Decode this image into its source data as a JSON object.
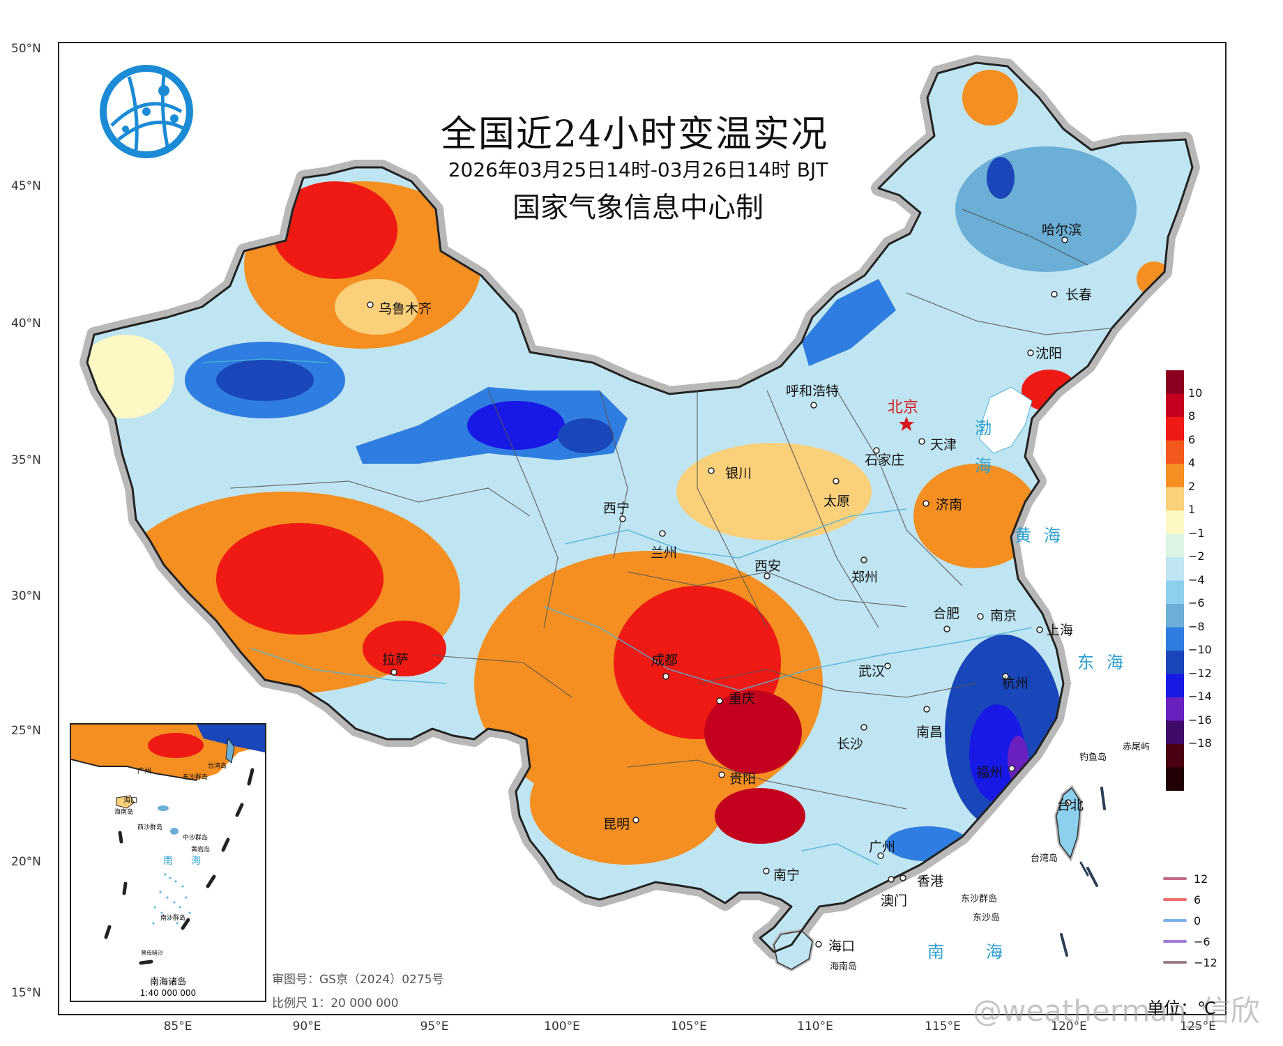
{
  "title": "全国近24小时变温实况",
  "subtitle": "2026年03月25日14时-03月26日14时 BJT",
  "producer": "国家气象信息中心制",
  "latitude_labels": [
    "50°N",
    "45°N",
    "40°N",
    "35°N",
    "30°N",
    "25°N",
    "20°N",
    "15°N"
  ],
  "longitude_labels": [
    "85°E",
    "90°E",
    "95°E",
    "100°E",
    "105°E",
    "110°E",
    "115°E",
    "120°E",
    "125°E"
  ],
  "cities": [
    {
      "name": "乌鲁木齐",
      "id": "urumqi"
    },
    {
      "name": "呼和浩特",
      "id": "hohhot"
    },
    {
      "name": "北京",
      "id": "beijing"
    },
    {
      "name": "天津",
      "id": "tianjin"
    },
    {
      "name": "石家庄",
      "id": "shijiazhuang"
    },
    {
      "name": "银川",
      "id": "yinchuan"
    },
    {
      "name": "太原",
      "id": "taiyuan"
    },
    {
      "name": "济南",
      "id": "jinan"
    },
    {
      "name": "西宁",
      "id": "xining"
    },
    {
      "name": "兰州",
      "id": "lanzhou"
    },
    {
      "name": "西安",
      "id": "xian"
    },
    {
      "name": "郑州",
      "id": "zhengzhou"
    },
    {
      "name": "合肥",
      "id": "hefei"
    },
    {
      "name": "南京",
      "id": "nanjing"
    },
    {
      "name": "上海",
      "id": "shanghai"
    },
    {
      "name": "拉萨",
      "id": "lhasa"
    },
    {
      "name": "成都",
      "id": "chengdu"
    },
    {
      "name": "重庆",
      "id": "chongqing"
    },
    {
      "name": "武汉",
      "id": "wuhan"
    },
    {
      "name": "杭州",
      "id": "hangzhou"
    },
    {
      "name": "长沙",
      "id": "changsha"
    },
    {
      "name": "南昌",
      "id": "nanchang"
    },
    {
      "name": "贵阳",
      "id": "guiyang"
    },
    {
      "name": "福州",
      "id": "fuzhou"
    },
    {
      "name": "昆明",
      "id": "kunming"
    },
    {
      "name": "台北",
      "id": "taipei"
    },
    {
      "name": "广州",
      "id": "guangzhou"
    },
    {
      "name": "南宁",
      "id": "nanning"
    },
    {
      "name": "香港",
      "id": "hongkong"
    },
    {
      "name": "澳门",
      "id": "macau"
    },
    {
      "name": "海口",
      "id": "haikou"
    },
    {
      "name": "哈尔滨",
      "id": "harbin"
    },
    {
      "name": "长春",
      "id": "changchun"
    },
    {
      "name": "沈阳",
      "id": "shenyang"
    }
  ],
  "seas": {
    "bohai_1": "渤",
    "bohai_2": "海",
    "huanghai": "黄海",
    "donghai": "东海",
    "nanhai": "南海"
  },
  "islands": {
    "diaoyu": "钓鱼岛",
    "chiwei": "赤尾屿",
    "taiwan": "台湾岛",
    "dongsha_islands": "东沙群岛",
    "dongsha": "东沙岛",
    "hainan": "海南岛"
  },
  "colorbar": {
    "labels": [
      "10",
      "8",
      "6",
      "4",
      "2",
      "1",
      "−1",
      "−2",
      "−4",
      "−6",
      "−8",
      "−10",
      "−12",
      "−14",
      "−16",
      "−18"
    ],
    "colors": [
      "#8b0020",
      "#c4001f",
      "#ef1a14",
      "#f4581c",
      "#f58f21",
      "#fbd07a",
      "#fdf8c4",
      "#ddf4e4",
      "#bfe5f2",
      "#8dd0ee",
      "#6baed6",
      "#2f7de0",
      "#1946b8",
      "#1919e6",
      "#6a1fbf",
      "#3f0a6a",
      "#4a0010",
      "#210005"
    ]
  },
  "line_legend": [
    {
      "value": "12",
      "color": "#c46a86"
    },
    {
      "value": "6",
      "color": "#ee6d6d"
    },
    {
      "value": "0",
      "color": "#7ab0ec"
    },
    {
      "value": "−6",
      "color": "#a27bd6"
    },
    {
      "value": "−12",
      "color": "#9c7d86"
    }
  ],
  "inset": {
    "title": "南海诸岛",
    "scale": "1:40 000 000",
    "labels": {
      "haikou": "海口",
      "hainan": "海南岛",
      "xisha": "西沙群岛",
      "zhongsha": "中沙群岛",
      "huangyan": "黄岩岛",
      "nansha": "南沙群岛",
      "dongsha": "东沙群岛",
      "taiwan": "台湾岛",
      "guangzhou": "广州",
      "sea_1": "南",
      "sea_2": "海",
      "zengmu": "曾母暗沙"
    }
  },
  "approval": "审图号：GS京（2024）0275号",
  "scale": "比例尺  1：20 000 000",
  "unit": "单位：℃",
  "watermark": "@weatherman_信欣"
}
